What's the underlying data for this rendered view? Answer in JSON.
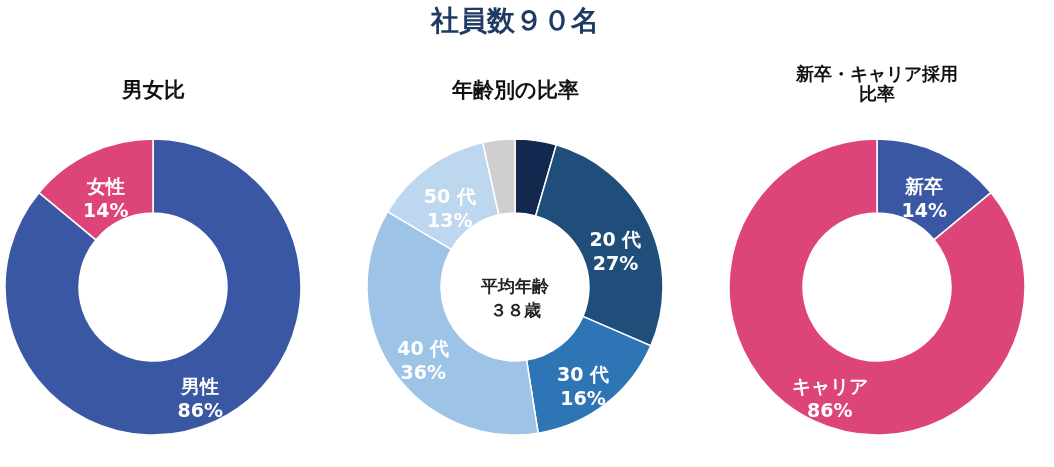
{
  "chart_data": [
    {
      "type": "donut",
      "title": "男女比",
      "annotations": [
        "社員数９０名"
      ],
      "categories": [
        "男性",
        "女性"
      ],
      "values": [
        86,
        14
      ],
      "colors": [
        "#3a57a4",
        "#dd4479"
      ],
      "value_labels": [
        "86%",
        "14%"
      ],
      "legend": false
    },
    {
      "type": "donut",
      "title": "年齢別の比率",
      "annotations": [
        "平均年齢３８歳"
      ],
      "categories": [
        null,
        "20 代",
        "30 代",
        "40 代",
        "50 代",
        null
      ],
      "values": [
        4.5,
        27,
        16,
        36,
        13,
        3.5
      ],
      "colors": [
        "#12284f",
        "#1f4e7a",
        "#2e75b6",
        "#9dc3e6",
        "#bdd7ee",
        "#d0cece"
      ],
      "value_labels": [
        null,
        "27%",
        "16%",
        "36%",
        "13%",
        null
      ],
      "legend": false
    },
    {
      "type": "donut",
      "title": "新卒・キャリア採用比率",
      "categories": [
        "新卒",
        "キャリア"
      ],
      "values": [
        14,
        86
      ],
      "colors": [
        "#3a57a4",
        "#dd4479"
      ],
      "value_labels": [
        "14%",
        "86%"
      ],
      "legend": false
    }
  ]
}
